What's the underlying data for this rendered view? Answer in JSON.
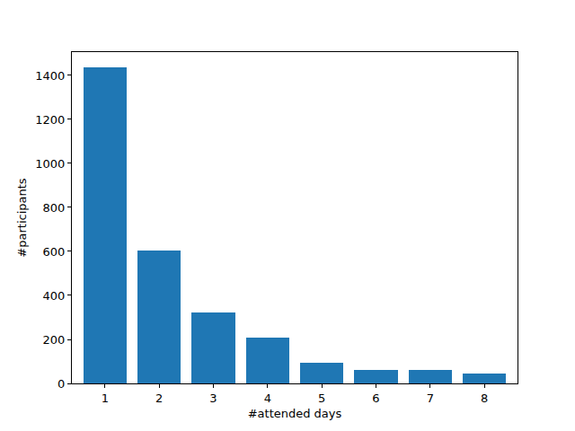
{
  "chart_data": {
    "type": "bar",
    "x": [
      1,
      2,
      3,
      4,
      5,
      6,
      7,
      8
    ],
    "values": [
      1435,
      603,
      322,
      208,
      93,
      62,
      60,
      45
    ],
    "color": "#1f77b4",
    "x_label": "#attended days",
    "y_label": "#participants",
    "xlim": [
      0.39,
      8.61
    ],
    "xticks": [
      1,
      2,
      3,
      4,
      5,
      6,
      7,
      8
    ],
    "ylim": [
      0,
      1506
    ],
    "yticks": [
      0,
      200,
      400,
      600,
      800,
      1000,
      1200,
      1400
    ],
    "grid": false
  }
}
